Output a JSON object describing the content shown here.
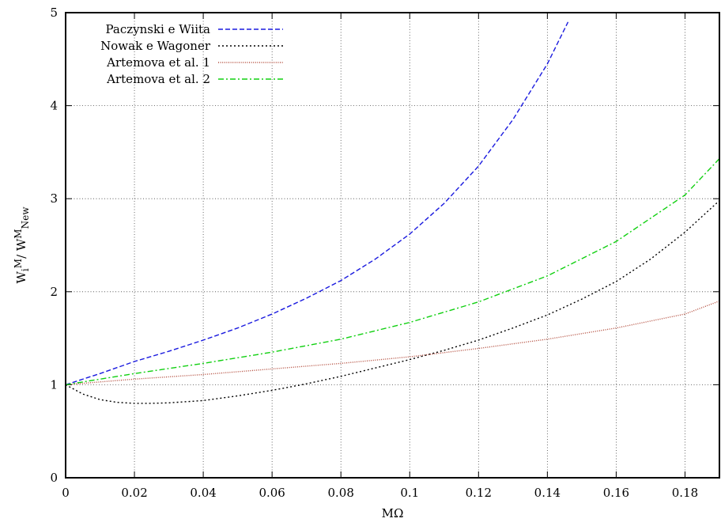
{
  "chart_data": {
    "type": "line",
    "title": "",
    "xlabel": "MΩ",
    "ylabel": {
      "base1": "W",
      "sub1": "i",
      "sup1": "M",
      "sep": "/ W",
      "sup2": "M",
      "sub2": "New"
    },
    "xlim": [
      0,
      0.19
    ],
    "ylim": [
      0,
      5
    ],
    "xticks": [
      0,
      0.02,
      0.04,
      0.06,
      0.08,
      0.1,
      0.12,
      0.14,
      0.16,
      0.18
    ],
    "xtick_labels": [
      "0",
      "0.02",
      "0.04",
      "0.06",
      "0.08",
      "0.1",
      "0.12",
      "0.14",
      "0.16",
      "0.18"
    ],
    "yticks": [
      0,
      1,
      2,
      3,
      4,
      5
    ],
    "ytick_labels": [
      "0",
      "1",
      "2",
      "3",
      "4",
      "5"
    ],
    "grid": true,
    "legend_position": "top-left",
    "series": [
      {
        "name": "Paczynski e Wiita",
        "color": "#1a1adf",
        "dash": "dashed",
        "x": [
          0,
          0.01,
          0.02,
          0.03,
          0.04,
          0.05,
          0.06,
          0.07,
          0.08,
          0.09,
          0.1,
          0.11,
          0.12,
          0.13,
          0.14,
          0.146
        ],
        "y": [
          1.0,
          1.12,
          1.25,
          1.36,
          1.48,
          1.61,
          1.76,
          1.93,
          2.12,
          2.35,
          2.62,
          2.95,
          3.35,
          3.85,
          4.45,
          4.9
        ]
      },
      {
        "name": "Nowak e Wagoner",
        "color": "#000000",
        "dash": "dotted",
        "x": [
          0,
          0.005,
          0.01,
          0.015,
          0.02,
          0.025,
          0.03,
          0.04,
          0.05,
          0.06,
          0.07,
          0.08,
          0.09,
          0.1,
          0.11,
          0.12,
          0.13,
          0.14,
          0.15,
          0.16,
          0.17,
          0.18,
          0.19
        ],
        "y": [
          1.0,
          0.9,
          0.84,
          0.81,
          0.8,
          0.8,
          0.805,
          0.83,
          0.88,
          0.94,
          1.01,
          1.09,
          1.18,
          1.27,
          1.37,
          1.48,
          1.61,
          1.75,
          1.92,
          2.11,
          2.35,
          2.64,
          2.98
        ]
      },
      {
        "name": "Artemova et al. 1",
        "color": "#b24a3a",
        "dash": "fine-dotted",
        "x": [
          0,
          0.02,
          0.04,
          0.06,
          0.08,
          0.1,
          0.12,
          0.14,
          0.16,
          0.18,
          0.19
        ],
        "y": [
          1.0,
          1.06,
          1.11,
          1.17,
          1.23,
          1.3,
          1.39,
          1.49,
          1.61,
          1.76,
          1.9
        ]
      },
      {
        "name": "Artemova et al. 2",
        "color": "#11d011",
        "dash": "dash-dot",
        "x": [
          0,
          0.02,
          0.04,
          0.06,
          0.08,
          0.1,
          0.12,
          0.14,
          0.16,
          0.18,
          0.19
        ],
        "y": [
          1.0,
          1.12,
          1.23,
          1.35,
          1.49,
          1.67,
          1.89,
          2.17,
          2.54,
          3.04,
          3.43
        ]
      }
    ]
  }
}
